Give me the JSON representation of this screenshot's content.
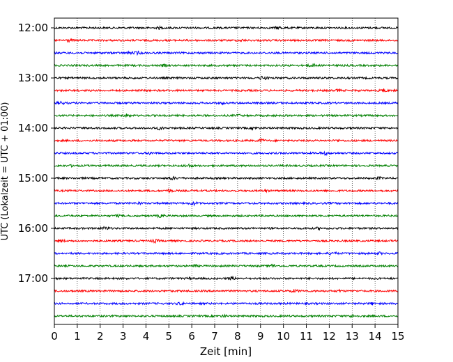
{
  "chart_data": {
    "type": "line",
    "title": "",
    "xlabel": "Zeit  [min]",
    "ylabel": "UTC (Lokalzeit = UTC + 01:00)",
    "xlim": [
      0,
      15
    ],
    "x_ticks": [
      "0",
      "1",
      "2",
      "3",
      "4",
      "5",
      "6",
      "7",
      "8",
      "9",
      "10",
      "11",
      "12",
      "13",
      "14",
      "15"
    ],
    "y_ticks": [
      "12:00",
      "13:00",
      "14:00",
      "15:00",
      "16:00",
      "17:00"
    ],
    "grid": "vertical dotted at each minute",
    "row_interval_min": 15,
    "start_time": "12:00",
    "end_time": "17:45",
    "row_colors": [
      "#000000",
      "#ff0000",
      "#0000ff",
      "#008000"
    ],
    "rows": [
      "12:00",
      "12:15",
      "12:30",
      "12:45",
      "13:00",
      "13:15",
      "13:30",
      "13:45",
      "14:00",
      "14:15",
      "14:30",
      "14:45",
      "15:00",
      "15:15",
      "15:30",
      "15:45",
      "16:00",
      "16:15",
      "16:30",
      "16:45",
      "17:00",
      "17:15",
      "17:30",
      "17:45"
    ]
  }
}
